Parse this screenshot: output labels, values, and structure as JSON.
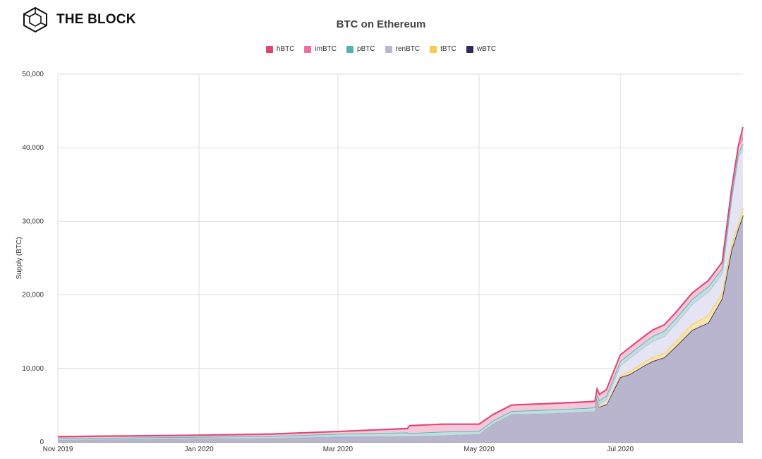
{
  "brand": {
    "name": "THE BLOCK",
    "logo_icon": "cube-hexagon-icon"
  },
  "chart_data": {
    "type": "area",
    "stacked": true,
    "title": "BTC on Ethereum",
    "ylabel": "Supply (BTC)",
    "xlabel": "",
    "ylim": [
      0,
      50000
    ],
    "yticks": [
      0,
      10000,
      20000,
      30000,
      40000,
      50000
    ],
    "ytick_labels": [
      "0",
      "10,000",
      "20,000",
      "30,000",
      "40,000",
      "50,000"
    ],
    "xticks": [
      {
        "x": "2019-11-01",
        "label": "Nov 2019"
      },
      {
        "x": "2020-01-01",
        "label": "Jan 2020"
      },
      {
        "x": "2020-03-01",
        "label": "Mar 2020"
      },
      {
        "x": "2020-05-01",
        "label": "May 2020"
      },
      {
        "x": "2020-07-01",
        "label": "Jul 2020"
      }
    ],
    "xlim": [
      "2019-11-01",
      "2020-08-23"
    ],
    "grid": true,
    "legend_position": "top-center",
    "x": [
      "2019-11-01",
      "2019-12-01",
      "2020-01-01",
      "2020-02-01",
      "2020-03-01",
      "2020-03-31",
      "2020-04-01",
      "2020-04-15",
      "2020-05-01",
      "2020-05-07",
      "2020-05-15",
      "2020-05-31",
      "2020-06-15",
      "2020-06-20",
      "2020-06-21",
      "2020-06-22",
      "2020-06-25",
      "2020-07-01",
      "2020-07-05",
      "2020-07-12",
      "2020-07-15",
      "2020-07-20",
      "2020-07-25",
      "2020-08-01",
      "2020-08-05",
      "2020-08-08",
      "2020-08-14",
      "2020-08-18",
      "2020-08-21",
      "2020-08-23"
    ],
    "series": [
      {
        "name": "wBTC",
        "color": "#2e2a5a",
        "fill": "#bab5ce",
        "values": [
          300,
          400,
          500,
          550,
          750,
          800,
          800,
          900,
          1100,
          2500,
          3800,
          3900,
          4100,
          4200,
          5900,
          4800,
          5100,
          8800,
          9200,
          10500,
          11000,
          11500,
          13000,
          15200,
          15800,
          16200,
          19500,
          26000,
          29000,
          30800
        ]
      },
      {
        "name": "tBTC",
        "color": "#f5cd4a",
        "fill": "#f8e6ad",
        "values": [
          0,
          0,
          0,
          0,
          0,
          0,
          0,
          0,
          0,
          0,
          0,
          0,
          0,
          0,
          0,
          50,
          100,
          300,
          400,
          500,
          500,
          600,
          700,
          800,
          900,
          1000,
          800,
          800,
          800,
          1000
        ]
      },
      {
        "name": "renBTC",
        "color": "#b7b9d2",
        "fill": "#e6e4f3",
        "values": [
          0,
          0,
          0,
          0,
          0,
          0,
          0,
          0,
          0,
          0,
          0,
          0,
          0,
          0,
          0,
          300,
          600,
          1300,
          1800,
          2100,
          2200,
          2300,
          2400,
          2700,
          3000,
          3200,
          2600,
          6000,
          9000,
          8000
        ]
      },
      {
        "name": "pBTC",
        "color": "#4fb3b0",
        "fill": "#bfe0e0",
        "values": [
          200,
          200,
          200,
          250,
          350,
          500,
          400,
          500,
          400,
          400,
          400,
          500,
          500,
          500,
          500,
          500,
          500,
          600,
          600,
          600,
          700,
          700,
          700,
          700,
          700,
          700,
          700,
          600,
          600,
          700
        ]
      },
      {
        "name": "imBTC",
        "color": "#ef6fa0",
        "fill": "#f7c6d8",
        "values": [
          200,
          200,
          200,
          250,
          300,
          500,
          1000,
          1000,
          900,
          800,
          800,
          800,
          800,
          800,
          800,
          800,
          800,
          800,
          800,
          800,
          800,
          800,
          800,
          800,
          800,
          800,
          800,
          800,
          800,
          800
        ]
      },
      {
        "name": "hBTC",
        "color": "#e0446f",
        "fill": "#f0a7bc",
        "values": [
          50,
          50,
          50,
          50,
          50,
          50,
          50,
          50,
          50,
          50,
          50,
          50,
          50,
          50,
          50,
          50,
          50,
          50,
          50,
          50,
          50,
          50,
          50,
          50,
          50,
          50,
          50,
          50,
          50,
          1500
        ]
      }
    ]
  }
}
